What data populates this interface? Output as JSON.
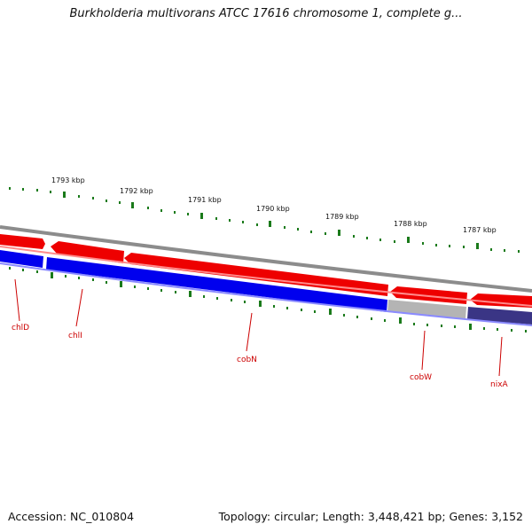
{
  "title": "Burkholderia multivorans ATCC 17616 chromosome 1, complete g...",
  "footer": {
    "accession": "Accession: NC_010804",
    "summary": "Topology: circular; Length: 3,448,421 bp; Genes: 3,152"
  },
  "kbp_labels": [
    "1793 kbp",
    "1792 kbp",
    "1791 kbp",
    "1790 kbp",
    "1789 kbp",
    "1788 kbp",
    "1787 kbp"
  ],
  "genes": [
    {
      "name": "chlD"
    },
    {
      "name": "chlI"
    },
    {
      "name": "cobN"
    },
    {
      "name": "cobW"
    },
    {
      "name": "nixA"
    }
  ],
  "colors": {
    "forward_strand": "#ee0000",
    "reverse_strand": "#0000ee",
    "gray_gene": "#b4b4b4",
    "dark_gene": "#3a3585",
    "backbone": "#8c8c8c",
    "ticks": "#1a7a1a",
    "gene_label": "#cc0000"
  }
}
